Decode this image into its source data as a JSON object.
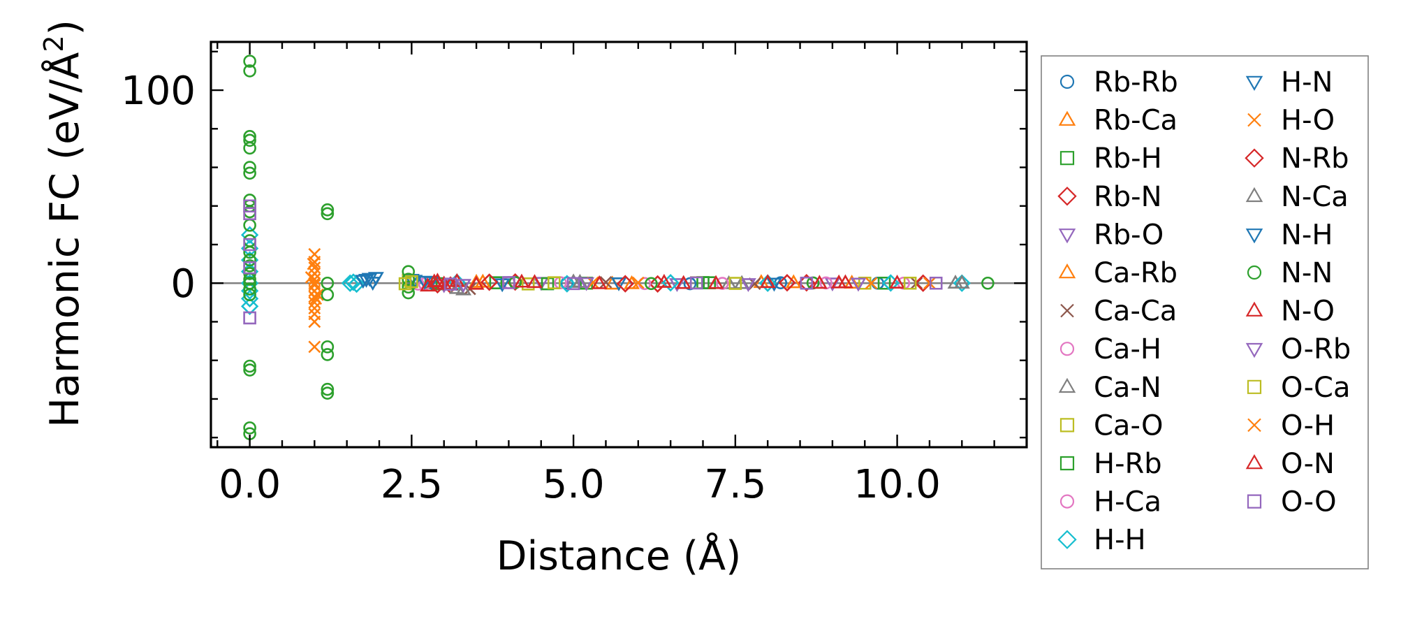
{
  "chart_data": {
    "type": "scatter",
    "xlabel": "Distance (Å)",
    "ylabel": "Harmonic FC (eV/Å²)",
    "ylabel_base": "Harmonic FC (eV/Å",
    "ylabel_sup": "2",
    "ylabel_close": ")",
    "xlim": [
      -0.6,
      12.0
    ],
    "ylim": [
      -85,
      125
    ],
    "xticks": [
      0.0,
      2.5,
      5.0,
      7.5,
      10.0
    ],
    "xtick_labels": [
      "0.0",
      "2.5",
      "5.0",
      "7.5",
      "10.0"
    ],
    "yticks": [
      0,
      100
    ],
    "ytick_labels": [
      "0",
      "100"
    ],
    "reference_line_y": 0,
    "legend_position": "outside-right",
    "legend_columns": 2,
    "series": [
      {
        "name": "Rb-Rb",
        "marker": "circle",
        "color": "#1f77b4",
        "points": [
          [
            4.9,
            0.1
          ],
          [
            6.8,
            -0.3
          ],
          [
            8.2,
            0.2
          ],
          [
            9.7,
            0.0
          ]
        ]
      },
      {
        "name": "Rb-Ca",
        "marker": "triangle-up",
        "color": "#ff7f0e",
        "points": [
          [
            3.5,
            0.4
          ],
          [
            5.6,
            -0.5
          ],
          [
            7.9,
            0.3
          ],
          [
            9.3,
            0.0
          ]
        ]
      },
      {
        "name": "Rb-H",
        "marker": "square",
        "color": "#2ca02c",
        "points": [
          [
            2.9,
            -0.3
          ],
          [
            3.8,
            0.2
          ],
          [
            5.2,
            0.0
          ],
          [
            7.0,
            0.3
          ]
        ]
      },
      {
        "name": "Rb-N",
        "marker": "diamond",
        "color": "#d62728",
        "points": [
          [
            3.1,
            -1.0
          ],
          [
            4.1,
            0.6
          ],
          [
            6.3,
            -0.4
          ],
          [
            8.6,
            0.2
          ]
        ]
      },
      {
        "name": "Rb-O",
        "marker": "triangle-down",
        "color": "#9467bd",
        "points": [
          [
            3.0,
            -0.8
          ],
          [
            4.5,
            0.4
          ],
          [
            6.6,
            -0.2
          ],
          [
            9.0,
            0.1
          ]
        ]
      },
      {
        "name": "Ca-Rb",
        "marker": "triangle-up",
        "color": "#ff7f0e",
        "points": [
          [
            3.6,
            0.5
          ],
          [
            5.9,
            -0.3
          ],
          [
            8.4,
            0.2
          ]
        ]
      },
      {
        "name": "Ca-Ca",
        "marker": "x",
        "color": "#8c564b",
        "points": [
          [
            3.4,
            -3.0
          ],
          [
            5.5,
            0.5
          ],
          [
            7.8,
            -0.3
          ],
          [
            10.3,
            0.0
          ]
        ]
      },
      {
        "name": "Ca-H",
        "marker": "circle",
        "color": "#e377c2",
        "points": [
          [
            2.6,
            -0.5
          ],
          [
            4.0,
            0.3
          ],
          [
            6.1,
            -0.2
          ],
          [
            8.9,
            0.1
          ]
        ]
      },
      {
        "name": "Ca-N",
        "marker": "triangle-up",
        "color": "#7f7f7f",
        "points": [
          [
            3.3,
            -3.5
          ],
          [
            5.0,
            0.6
          ],
          [
            7.4,
            -0.3
          ],
          [
            10.9,
            0.0
          ]
        ]
      },
      {
        "name": "Ca-O",
        "marker": "square",
        "color": "#bcbd22",
        "points": [
          [
            2.45,
            1.5
          ],
          [
            4.3,
            -0.4
          ],
          [
            6.9,
            0.2
          ],
          [
            9.5,
            0.0
          ]
        ]
      },
      {
        "name": "H-Rb",
        "marker": "square",
        "color": "#2ca02c",
        "points": [
          [
            2.8,
            0.3
          ],
          [
            4.6,
            -0.3
          ],
          [
            7.1,
            0.2
          ],
          [
            9.8,
            0.0
          ]
        ]
      },
      {
        "name": "H-Ca",
        "marker": "circle",
        "color": "#e377c2",
        "points": [
          [
            2.7,
            -0.4
          ],
          [
            4.8,
            0.2
          ],
          [
            7.3,
            -0.1
          ],
          [
            10.1,
            0.0
          ]
        ]
      },
      {
        "name": "H-H",
        "marker": "diamond",
        "color": "#17becf",
        "points": [
          [
            0.0,
            25
          ],
          [
            0.0,
            18
          ],
          [
            0.0,
            12
          ],
          [
            0.0,
            6
          ],
          [
            0.0,
            0
          ],
          [
            0.0,
            -4
          ],
          [
            0.0,
            -8
          ],
          [
            0.0,
            -12
          ],
          [
            1.55,
            0
          ],
          [
            1.6,
            0.5
          ],
          [
            1.65,
            -0.5
          ],
          [
            3.2,
            0.4
          ],
          [
            4.9,
            -0.3
          ],
          [
            6.5,
            0.2
          ],
          [
            8.0,
            0.0
          ],
          [
            9.9,
            0.1
          ],
          [
            11.0,
            0.0
          ]
        ]
      },
      {
        "name": "H-N",
        "marker": "triangle-down",
        "color": "#1f77b4",
        "points": [
          [
            1.8,
            2.0
          ],
          [
            1.9,
            0.5
          ],
          [
            1.95,
            3.0
          ],
          [
            2.5,
            2.0
          ],
          [
            2.7,
            1.0
          ],
          [
            3.9,
            -0.3
          ],
          [
            5.7,
            0.2
          ],
          [
            8.1,
            0.0
          ]
        ]
      },
      {
        "name": "H-O",
        "marker": "x",
        "color": "#ff7f0e",
        "points": [
          [
            1.0,
            15
          ],
          [
            1.0,
            11
          ],
          [
            1.0,
            8
          ],
          [
            1.0,
            5
          ],
          [
            1.0,
            2
          ],
          [
            1.0,
            -1
          ],
          [
            1.0,
            -4
          ],
          [
            1.0,
            -7
          ],
          [
            1.0,
            -10
          ],
          [
            1.0,
            -13
          ],
          [
            1.0,
            -16
          ],
          [
            1.0,
            -20
          ],
          [
            1.0,
            -33
          ],
          [
            0.95,
            3
          ],
          [
            1.05,
            -6
          ],
          [
            5.3,
            0.3
          ],
          [
            9.6,
            0.0
          ]
        ]
      },
      {
        "name": "N-Rb",
        "marker": "diamond",
        "color": "#d62728",
        "points": [
          [
            2.9,
            -0.8
          ],
          [
            3.7,
            0.5
          ],
          [
            5.8,
            -0.3
          ],
          [
            8.3,
            0.2
          ],
          [
            10.4,
            0.0
          ]
        ]
      },
      {
        "name": "N-Ca",
        "marker": "triangle-up",
        "color": "#7f7f7f",
        "points": [
          [
            3.2,
            -2.8
          ],
          [
            5.1,
            0.4
          ],
          [
            7.6,
            -0.2
          ],
          [
            11.0,
            0.0
          ]
        ]
      },
      {
        "name": "N-H",
        "marker": "triangle-down",
        "color": "#1f77b4",
        "points": [
          [
            1.75,
            1.5
          ],
          [
            1.85,
            2.5
          ],
          [
            2.55,
            1.5
          ],
          [
            2.8,
            0.8
          ]
        ]
      },
      {
        "name": "N-N",
        "marker": "circle",
        "color": "#2ca02c",
        "points": [
          [
            0.0,
            115
          ],
          [
            0.0,
            110
          ],
          [
            0.0,
            76
          ],
          [
            0.0,
            74
          ],
          [
            0.0,
            70
          ],
          [
            0.0,
            60
          ],
          [
            0.0,
            57
          ],
          [
            0.0,
            43
          ],
          [
            0.0,
            40
          ],
          [
            0.0,
            37
          ],
          [
            0.0,
            30
          ],
          [
            0.0,
            22
          ],
          [
            0.0,
            16
          ],
          [
            0.0,
            12
          ],
          [
            0.0,
            9
          ],
          [
            0.0,
            5
          ],
          [
            0.0,
            2
          ],
          [
            0.0,
            0
          ],
          [
            0.0,
            -3
          ],
          [
            0.0,
            -6
          ],
          [
            0.0,
            -43
          ],
          [
            0.0,
            -45
          ],
          [
            0.0,
            -75
          ],
          [
            0.0,
            -78
          ],
          [
            1.2,
            38
          ],
          [
            1.2,
            36
          ],
          [
            1.2,
            0
          ],
          [
            1.2,
            -6
          ],
          [
            1.2,
            -33
          ],
          [
            1.2,
            -37
          ],
          [
            1.2,
            -55
          ],
          [
            1.2,
            -57
          ],
          [
            2.45,
            6
          ],
          [
            2.45,
            2
          ],
          [
            2.45,
            -2
          ],
          [
            2.45,
            -5
          ],
          [
            4.1,
            0.3
          ],
          [
            6.2,
            -0.2
          ],
          [
            8.7,
            0.1
          ],
          [
            11.4,
            0.0
          ]
        ]
      },
      {
        "name": "N-O",
        "marker": "triangle-up",
        "color": "#d62728",
        "points": [
          [
            2.75,
            -1.5
          ],
          [
            2.9,
            1.0
          ],
          [
            3.0,
            -0.5
          ],
          [
            3.2,
            0.8
          ],
          [
            3.5,
            -0.6
          ],
          [
            4.2,
            0.5
          ],
          [
            5.4,
            -0.3
          ],
          [
            6.4,
            0.4
          ],
          [
            7.2,
            -0.2
          ],
          [
            8.0,
            0.3
          ],
          [
            8.8,
            -0.1
          ],
          [
            9.2,
            0.2
          ],
          [
            10.0,
            0.0
          ]
        ]
      },
      {
        "name": "O-Rb",
        "marker": "triangle-down",
        "color": "#9467bd",
        "points": [
          [
            3.3,
            -0.6
          ],
          [
            5.2,
            0.3
          ],
          [
            7.7,
            -0.2
          ],
          [
            9.4,
            0.0
          ]
        ]
      },
      {
        "name": "O-Ca",
        "marker": "square",
        "color": "#bcbd22",
        "points": [
          [
            2.4,
            -0.3
          ],
          [
            2.5,
            0.8
          ],
          [
            4.7,
            0.2
          ],
          [
            7.5,
            -0.1
          ],
          [
            10.2,
            0.0
          ]
        ]
      },
      {
        "name": "O-H",
        "marker": "x",
        "color": "#ff7f0e",
        "points": [
          [
            0.98,
            10
          ],
          [
            1.02,
            -8
          ],
          [
            1.0,
            0
          ],
          [
            6.0,
            0.2
          ],
          [
            10.5,
            0.0
          ]
        ]
      },
      {
        "name": "O-N",
        "marker": "triangle-up",
        "color": "#d62728",
        "points": [
          [
            2.85,
            0.6
          ],
          [
            3.1,
            -0.9
          ],
          [
            4.4,
            0.3
          ],
          [
            6.7,
            -0.2
          ],
          [
            9.1,
            0.1
          ]
        ]
      },
      {
        "name": "O-O",
        "marker": "square",
        "color": "#9467bd",
        "points": [
          [
            0.0,
            40
          ],
          [
            0.0,
            36
          ],
          [
            0.0,
            20
          ],
          [
            0.0,
            8
          ],
          [
            0.0,
            -18
          ],
          [
            3.1,
            -0.5
          ],
          [
            4.0,
            0.3
          ],
          [
            5.0,
            -0.2
          ],
          [
            6.9,
            0.1
          ],
          [
            8.6,
            0.0
          ],
          [
            10.6,
            0.0
          ]
        ]
      }
    ]
  }
}
